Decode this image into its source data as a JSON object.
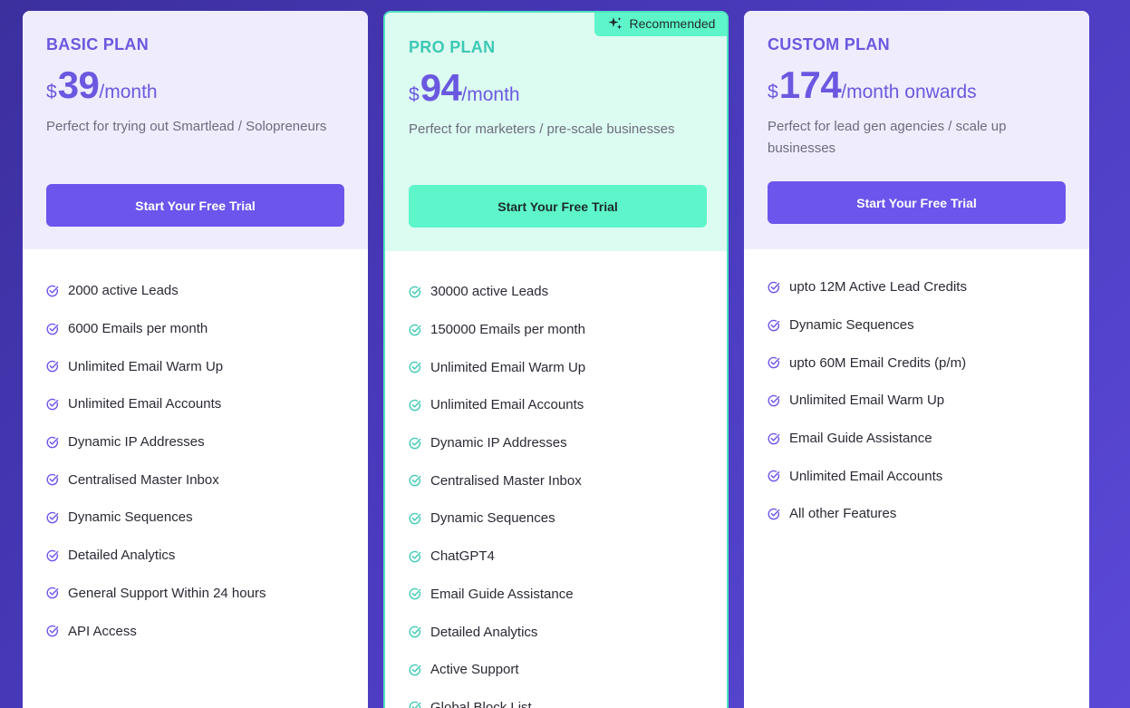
{
  "plans": [
    {
      "name": "BASIC PLAN",
      "currency": "$",
      "amount": "39",
      "period": "/month",
      "tagline": "Perfect for trying out Smartlead / Solopreneurs",
      "cta": "Start Your Free Trial",
      "features": [
        "2000 active Leads",
        "6000 Emails per month",
        "Unlimited Email Warm Up",
        "Unlimited Email Accounts",
        "Dynamic IP Addresses",
        "Centralised Master Inbox",
        "Dynamic Sequences",
        "Detailed Analytics",
        "General Support Within 24 hours",
        "API Access"
      ]
    },
    {
      "name": "PRO PLAN",
      "badge": "Recommended",
      "currency": "$",
      "amount": "94",
      "period": "/month",
      "tagline": "Perfect for marketers / pre-scale businesses",
      "cta": "Start Your Free Trial",
      "features": [
        "30000 active Leads",
        "150000 Emails per month",
        "Unlimited Email Warm Up",
        "Unlimited Email Accounts",
        "Dynamic IP Addresses",
        "Centralised Master Inbox",
        "Dynamic Sequences",
        "ChatGPT4",
        "Email Guide Assistance",
        "Detailed Analytics",
        "Active Support",
        "Global Block List"
      ]
    },
    {
      "name": "CUSTOM PLAN",
      "currency": "$",
      "amount": "174",
      "period": "/month onwards",
      "tagline": "Perfect for lead gen agencies / scale up businesses",
      "cta": "Start Your Free Trial",
      "features": [
        "upto 12M Active Lead Credits",
        "Dynamic Sequences",
        "upto 60M Email Credits (p/m)",
        "Unlimited Email Warm Up",
        "Email Guide Assistance",
        "Unlimited Email Accounts",
        "All other Features"
      ]
    }
  ],
  "icons": {
    "feature": "check-circle-icon",
    "badge": "sparkle-icon"
  },
  "colors": {
    "accent": "#6b55ec",
    "pro_accent": "#5ef5cb",
    "pro_check": "#3ec9b5"
  }
}
